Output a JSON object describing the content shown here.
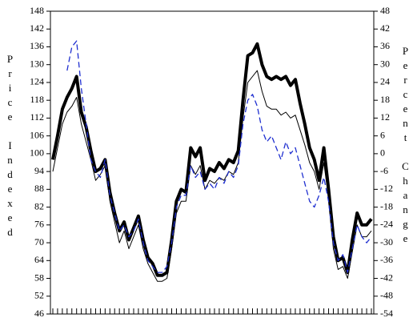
{
  "chart_data": {
    "type": "line",
    "y_label": "Price Indexed",
    "y2_label": "Percent Change",
    "categories": [
      null,
      null,
      null,
      null,
      null,
      null,
      null,
      null,
      null,
      null,
      null,
      null,
      null,
      null,
      null,
      null,
      null,
      null,
      null,
      null,
      null,
      null,
      null,
      null,
      null,
      null,
      null,
      null,
      null,
      null,
      null,
      null,
      null,
      null,
      null,
      null,
      null,
      null,
      null,
      null,
      null,
      null,
      null,
      null,
      null,
      null,
      null,
      null,
      null,
      null,
      null,
      null,
      null,
      null,
      null,
      null,
      null,
      null,
      null,
      null,
      null,
      null,
      null,
      null,
      null,
      null,
      null,
      null
    ],
    "ylim": [
      46,
      148
    ],
    "yticks": [
      46,
      52,
      58,
      64,
      70,
      76,
      82,
      88,
      94,
      100,
      106,
      112,
      118,
      124,
      130,
      136,
      142,
      148
    ],
    "y2lim": [
      -54,
      48
    ],
    "y2ticks": [
      -54,
      -48,
      -42,
      -36,
      -30,
      -24,
      -18,
      -12,
      -6,
      0,
      6,
      12,
      18,
      24,
      30,
      36,
      42,
      48
    ],
    "series": [
      {
        "color": "#000000",
        "width": 4,
        "dash": false,
        "values": [
          98,
          106,
          115,
          119,
          122,
          126,
          114,
          109,
          101,
          94,
          95,
          98,
          87,
          80,
          74,
          77,
          71,
          75,
          79,
          71,
          65,
          63,
          59,
          59,
          60,
          71,
          84,
          88,
          87,
          102,
          99,
          102,
          91,
          95,
          94,
          97,
          95,
          98,
          97,
          101,
          118,
          133,
          134,
          137,
          130,
          126,
          125,
          126,
          125,
          126,
          123,
          125,
          117,
          110,
          102,
          98,
          91,
          102,
          88,
          72,
          64,
          65,
          60,
          71,
          80,
          76,
          76,
          78
        ]
      },
      {
        "color": "#000000",
        "width": 1,
        "dash": false,
        "values": [
          94,
          102,
          110,
          114,
          116,
          119,
          110,
          104,
          98,
          91,
          93,
          96,
          84,
          77,
          70,
          74,
          68,
          72,
          76,
          68,
          63,
          60,
          57,
          57,
          58,
          68,
          80,
          84,
          84,
          96,
          93,
          96,
          88,
          91,
          90,
          92,
          91,
          94,
          93,
          97,
          112,
          124,
          126,
          128,
          121,
          116,
          115,
          115,
          113,
          114,
          112,
          113,
          108,
          103,
          97,
          94,
          88,
          97,
          85,
          68,
          61,
          62,
          58,
          67,
          76,
          72,
          72,
          74
        ]
      },
      {
        "color": "#1f2fd0",
        "width": 1.3,
        "dash": true,
        "axis": "y2",
        "values": [
          null,
          null,
          null,
          28,
          36,
          38,
          22,
          10,
          -2,
          -6,
          -8,
          -2,
          -14,
          -20,
          -26,
          -24,
          -28,
          -26,
          -22,
          -30,
          -36,
          -38,
          -40,
          -40,
          -38,
          -30,
          -18,
          -14,
          -14,
          -4,
          -8,
          -6,
          -12,
          -10,
          -12,
          -8,
          -10,
          -6,
          -8,
          -4,
          10,
          18,
          20,
          16,
          8,
          4,
          6,
          2,
          -2,
          4,
          0,
          2,
          -4,
          -10,
          -16,
          -18,
          -14,
          -8,
          -16,
          -30,
          -36,
          -34,
          -40,
          -32,
          -24,
          -28,
          -30,
          -28
        ]
      }
    ]
  }
}
